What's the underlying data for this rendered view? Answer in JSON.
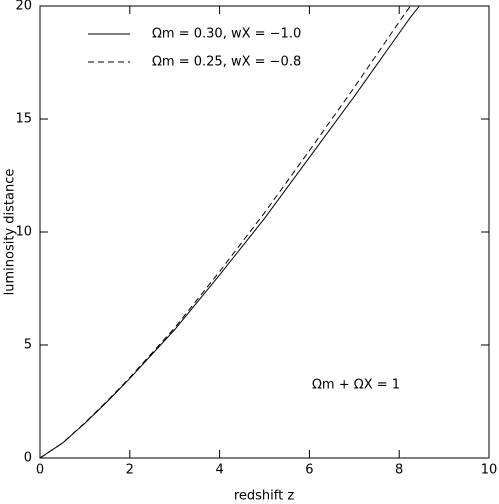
{
  "chart_data": {
    "type": "line",
    "x_label": "redshift z",
    "y_label": "luminosity distance",
    "annotation": "Ωm + ΩX = 1",
    "x": [
      0,
      0.5,
      1,
      1.5,
      2,
      3,
      4,
      5,
      6,
      7,
      8,
      8.25,
      8.45
    ],
    "series": [
      {
        "name": "Ωm = 0.30, wX = −1.0",
        "color": "#000000",
        "dash": "solid",
        "values": [
          0,
          0.66,
          1.54,
          2.5,
          3.52,
          5.68,
          8.1,
          10.6,
          13.3,
          16.0,
          18.8,
          19.5,
          20
        ]
      },
      {
        "name": "Ωm = 0.25, wX = −0.8",
        "color": "#000000",
        "dash": "dashed",
        "values": [
          0,
          0.66,
          1.56,
          2.53,
          3.56,
          5.76,
          8.25,
          10.85,
          13.6,
          16.4,
          19.3,
          20,
          null
        ]
      }
    ],
    "xlim": [
      0,
      10
    ],
    "ylim": [
      0,
      20
    ],
    "xticks": [
      0,
      2,
      4,
      6,
      8,
      10
    ],
    "yticks": [
      0,
      5,
      10,
      15,
      20
    ],
    "legend": "upper-left"
  }
}
